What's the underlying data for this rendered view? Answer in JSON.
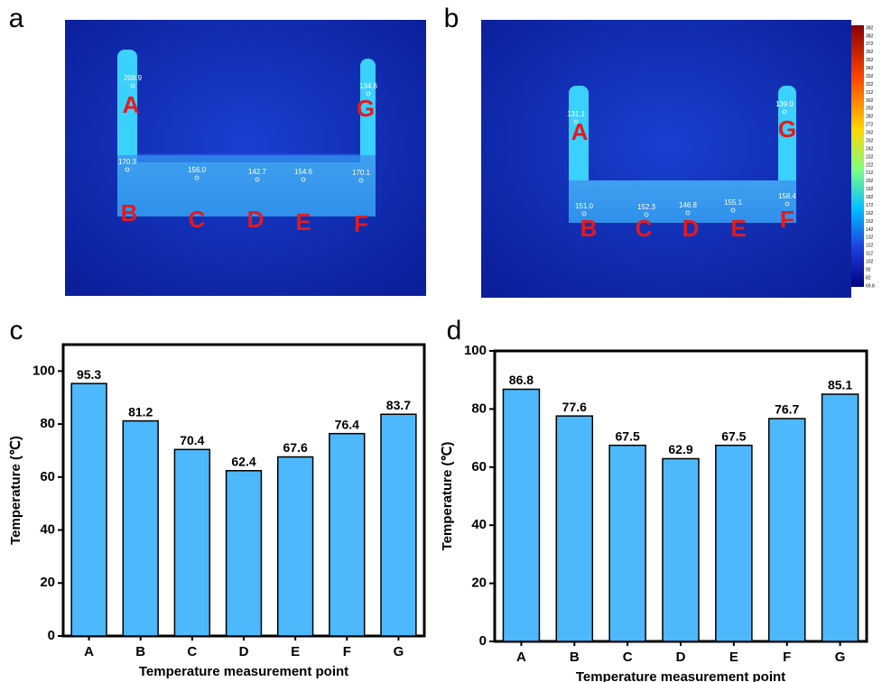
{
  "thermal_images": [
    {
      "panel_label": "a",
      "points": [
        {
          "label": "A",
          "reading": "208.9"
        },
        {
          "label": "G",
          "reading": "134.6"
        },
        {
          "label": "B",
          "reading": "170.3"
        },
        {
          "label": "C",
          "reading": "156.0"
        },
        {
          "label": "D",
          "reading": "142.7"
        },
        {
          "label": "E",
          "reading": "154.6"
        },
        {
          "label": "F",
          "reading": "170.1"
        }
      ]
    },
    {
      "panel_label": "b",
      "points": [
        {
          "label": "A",
          "reading": "131.1"
        },
        {
          "label": "G",
          "reading": "139.0"
        },
        {
          "label": "B",
          "reading": "151.0"
        },
        {
          "label": "C",
          "reading": "152.3"
        },
        {
          "label": "D",
          "reading": "146.8"
        },
        {
          "label": "E",
          "reading": "155.1"
        },
        {
          "label": "F",
          "reading": "158.4"
        }
      ],
      "colorbar_labels": [
        392,
        382,
        372,
        362,
        352,
        342,
        332,
        322,
        312,
        302,
        292,
        282,
        272,
        262,
        252,
        242,
        232,
        222,
        212,
        202,
        192,
        182,
        172,
        162,
        152,
        142,
        132,
        122,
        112,
        102,
        92,
        82,
        69.8
      ]
    }
  ],
  "chart_data": [
    {
      "type": "bar",
      "panel_label": "c",
      "x_label": "Temperature measurement point",
      "y_label": "Temperature (℃)",
      "categories": [
        "A",
        "B",
        "C",
        "D",
        "E",
        "F",
        "G"
      ],
      "values": [
        95.3,
        81.2,
        70.4,
        62.4,
        67.6,
        76.4,
        83.7
      ],
      "color": "#4db8fb",
      "ylim": [
        0,
        110
      ],
      "yticks": [
        0,
        20,
        40,
        60,
        80,
        100
      ]
    },
    {
      "type": "bar",
      "panel_label": "d",
      "x_label": "Temperature measurement point",
      "y_label": "Temperature (℃)",
      "categories": [
        "A",
        "B",
        "C",
        "D",
        "E",
        "F",
        "G"
      ],
      "values": [
        86.8,
        77.6,
        67.5,
        62.9,
        67.5,
        76.7,
        85.1
      ],
      "color": "#4db8fb",
      "ylim": [
        0,
        100
      ],
      "yticks": [
        0,
        20,
        40,
        60,
        80,
        100
      ]
    }
  ]
}
